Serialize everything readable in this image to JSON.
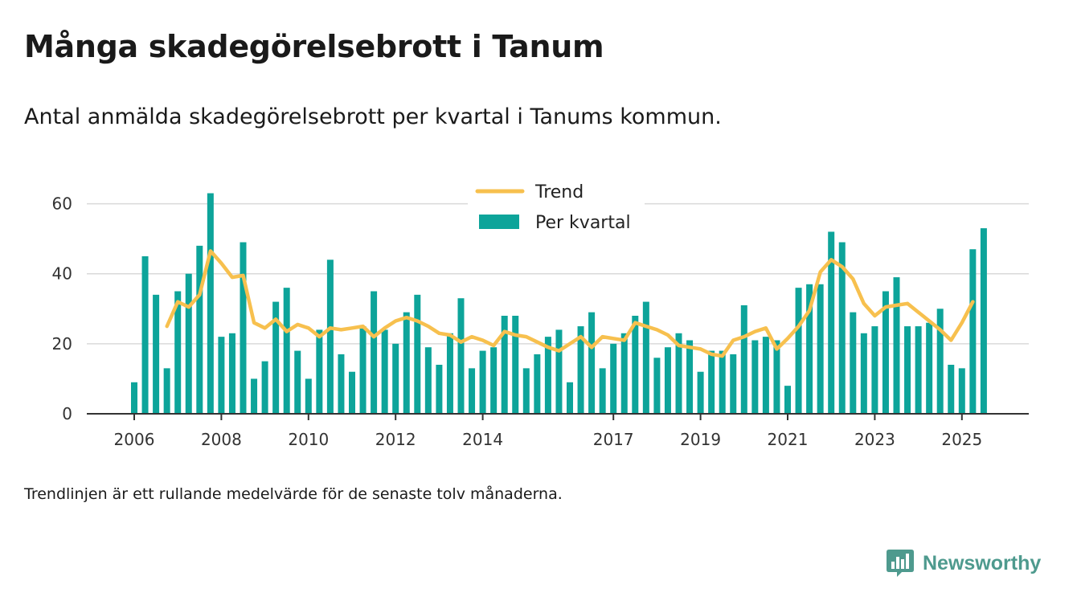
{
  "title": "Många skadegörelsebrott i Tanum",
  "subtitle": "Antal anmälda skadegörelsebrott per kvartal i Tanums kommun.",
  "footnote": "Trendlinjen är ett rullande medelvärde för de senaste tolv månaderna.",
  "brand": "Newsworthy",
  "colors": {
    "bar": "#0da49a",
    "trend": "#f7c04e",
    "grid": "#d9d9d9",
    "axis": "#333333",
    "brand": "#4e9a8e"
  },
  "chart_data": {
    "type": "bar",
    "xlabel": "",
    "ylabel": "",
    "ylim": [
      0,
      70
    ],
    "yticks": [
      0,
      20,
      40,
      60
    ],
    "grid": true,
    "legend_position": "top-center",
    "x_ticks": [
      {
        "label": "2006",
        "index": 0
      },
      {
        "label": "2008",
        "index": 8
      },
      {
        "label": "2010",
        "index": 16
      },
      {
        "label": "2012",
        "index": 24
      },
      {
        "label": "2014",
        "index": 32
      },
      {
        "label": "2017",
        "index": 44
      },
      {
        "label": "2019",
        "index": 52
      },
      {
        "label": "2021",
        "index": 60
      },
      {
        "label": "2023",
        "index": 68
      },
      {
        "label": "2025",
        "index": 76
      }
    ],
    "series": [
      {
        "name": "Per kvartal",
        "kind": "bar",
        "values": [
          9,
          45,
          34,
          13,
          35,
          40,
          48,
          63,
          22,
          23,
          49,
          10,
          15,
          32,
          36,
          18,
          10,
          24,
          44,
          17,
          12,
          25,
          35,
          24,
          20,
          29,
          34,
          19,
          14,
          23,
          33,
          13,
          18,
          19,
          28,
          28,
          13,
          17,
          22,
          24,
          9,
          25,
          29,
          13,
          20,
          23,
          28,
          32,
          16,
          19,
          23,
          21,
          12,
          18,
          18,
          17,
          31,
          21,
          22,
          21,
          8,
          36,
          37,
          37,
          52,
          49,
          29,
          23,
          25,
          35,
          39,
          25,
          25,
          26,
          30,
          14,
          13,
          47,
          53
        ]
      },
      {
        "name": "Trend",
        "kind": "line",
        "start_index": 3,
        "values": [
          25,
          32,
          30.5,
          34,
          46.5,
          43,
          39,
          39.5,
          26,
          24.5,
          27,
          23.5,
          25.5,
          24.5,
          22,
          24.5,
          24,
          24.5,
          25,
          22,
          24.5,
          26.5,
          27.5,
          26.5,
          25,
          23,
          22.5,
          20.5,
          22,
          21,
          19.5,
          23.5,
          22.5,
          22,
          20.5,
          19,
          18,
          20,
          22,
          19,
          22,
          21.5,
          21,
          26,
          25,
          24,
          22.5,
          19.5,
          19,
          18.5,
          17,
          16.5,
          21,
          22,
          23.5,
          24.5,
          18.5,
          21.5,
          25,
          29.5,
          40.5,
          44,
          42,
          38.5,
          31.5,
          28,
          30.5,
          31,
          31.5,
          29,
          26.5,
          24,
          21,
          26,
          32
        ]
      }
    ]
  }
}
